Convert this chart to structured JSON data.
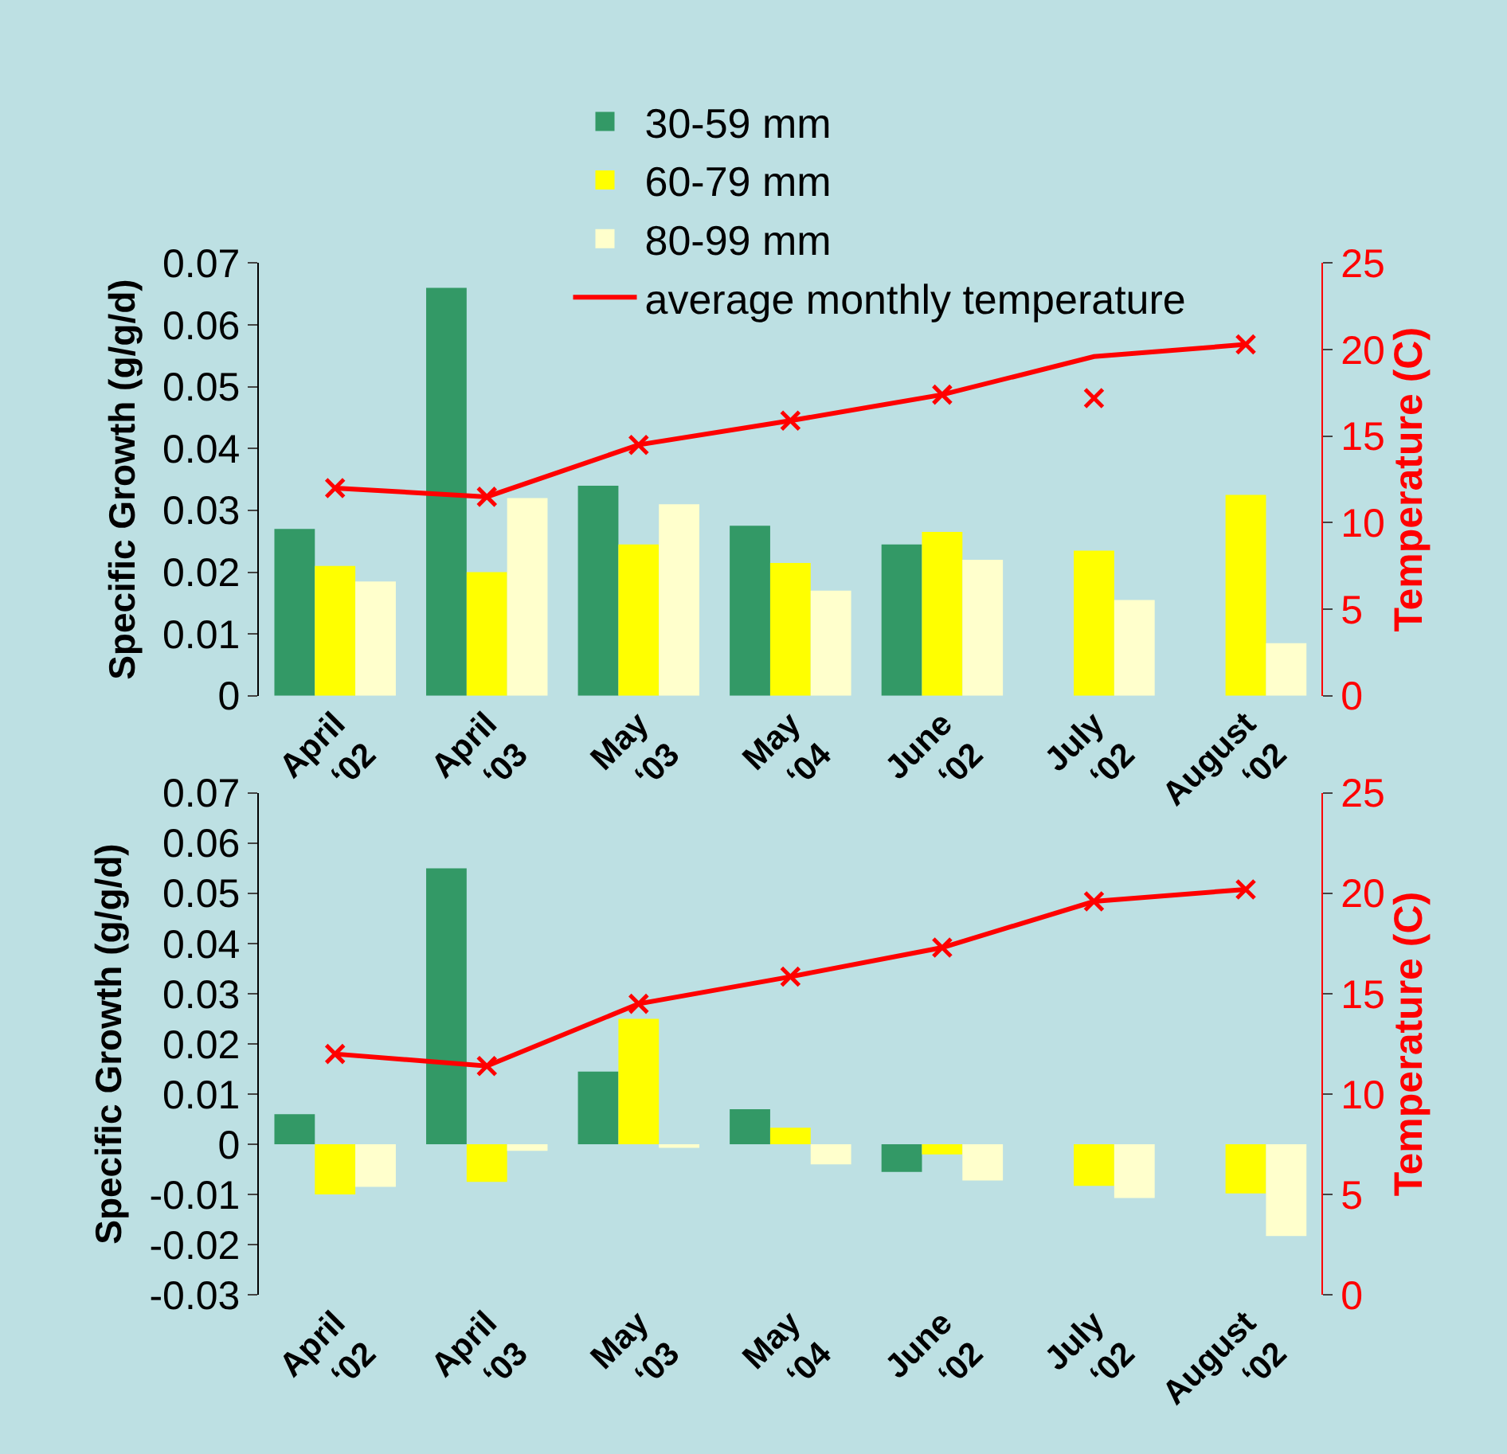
{
  "chart_data": [
    {
      "type": "bar",
      "categories": [
        "April\n‘02",
        "April\n‘03",
        "May\n‘03",
        "May\n‘04",
        "June\n‘02",
        "July\n‘02",
        "August\n‘02"
      ],
      "ylabel": "Specific Growth (g/g/d)",
      "y2label": "Temperature (C)",
      "ylim": [
        0,
        0.07
      ],
      "yticks": [
        0,
        0.01,
        0.02,
        0.03,
        0.04,
        0.05,
        0.06,
        0.07
      ],
      "y2lim": [
        0,
        25
      ],
      "y2ticks": [
        0,
        5,
        10,
        15,
        20,
        25
      ],
      "legend": "top",
      "grid": false,
      "series": [
        {
          "name": "30-59 mm",
          "color": "#339966",
          "values": [
            0.027,
            0.066,
            0.034,
            0.0275,
            0.0245,
            null,
            null
          ]
        },
        {
          "name": "60-79 mm",
          "color": "#ffff00",
          "values": [
            0.021,
            0.02,
            0.0245,
            0.0215,
            0.0265,
            0.0235,
            0.0325
          ]
        },
        {
          "name": "80-99 mm",
          "color": "#ffffcc",
          "values": [
            0.0185,
            0.032,
            0.031,
            0.017,
            0.022,
            0.0155,
            0.0085
          ]
        },
        {
          "name": "average monthly temperature",
          "type": "line",
          "axis": "y2",
          "color": "#ff0000",
          "marker": "none",
          "values": [
            12.0,
            11.5,
            14.5,
            15.9,
            17.4,
            19.6,
            20.3
          ]
        },
        {
          "type": "scatter",
          "axis": "y2",
          "color": "#ff0000",
          "marker": "cross",
          "values": [
            12.0,
            11.5,
            14.5,
            15.9,
            17.4,
            17.2,
            20.3
          ]
        }
      ]
    },
    {
      "type": "bar",
      "categories": [
        "April\n‘02",
        "April\n‘03",
        "May\n‘03",
        "May\n‘04",
        "June\n‘02",
        "July\n‘02",
        "August\n‘02"
      ],
      "ylabel": "Specific Growth (g/g/d)",
      "y2label": "Temperature (C)",
      "ylim": [
        -0.03,
        0.07
      ],
      "yticks": [
        -0.03,
        -0.02,
        -0.01,
        0,
        0.01,
        0.02,
        0.03,
        0.04,
        0.05,
        0.06,
        0.07
      ],
      "y2lim": [
        0,
        25
      ],
      "y2ticks": [
        0,
        5,
        10,
        15,
        20,
        25
      ],
      "grid": false,
      "series": [
        {
          "color": "#339966",
          "values": [
            0.006,
            0.055,
            0.0145,
            0.007,
            -0.0055,
            null,
            null
          ]
        },
        {
          "color": "#ffff00",
          "values": [
            -0.01,
            -0.0075,
            0.025,
            0.0033,
            -0.002,
            -0.0083,
            -0.0098
          ]
        },
        {
          "color": "#ffffcc",
          "values": [
            -0.0085,
            -0.0013,
            -0.0007,
            -0.004,
            -0.0072,
            -0.0107,
            -0.0183
          ]
        },
        {
          "type": "line",
          "axis": "y2",
          "color": "#ff0000",
          "marker": "cross",
          "values": [
            12.0,
            11.4,
            14.5,
            15.85,
            17.3,
            19.6,
            20.2
          ]
        }
      ]
    }
  ]
}
